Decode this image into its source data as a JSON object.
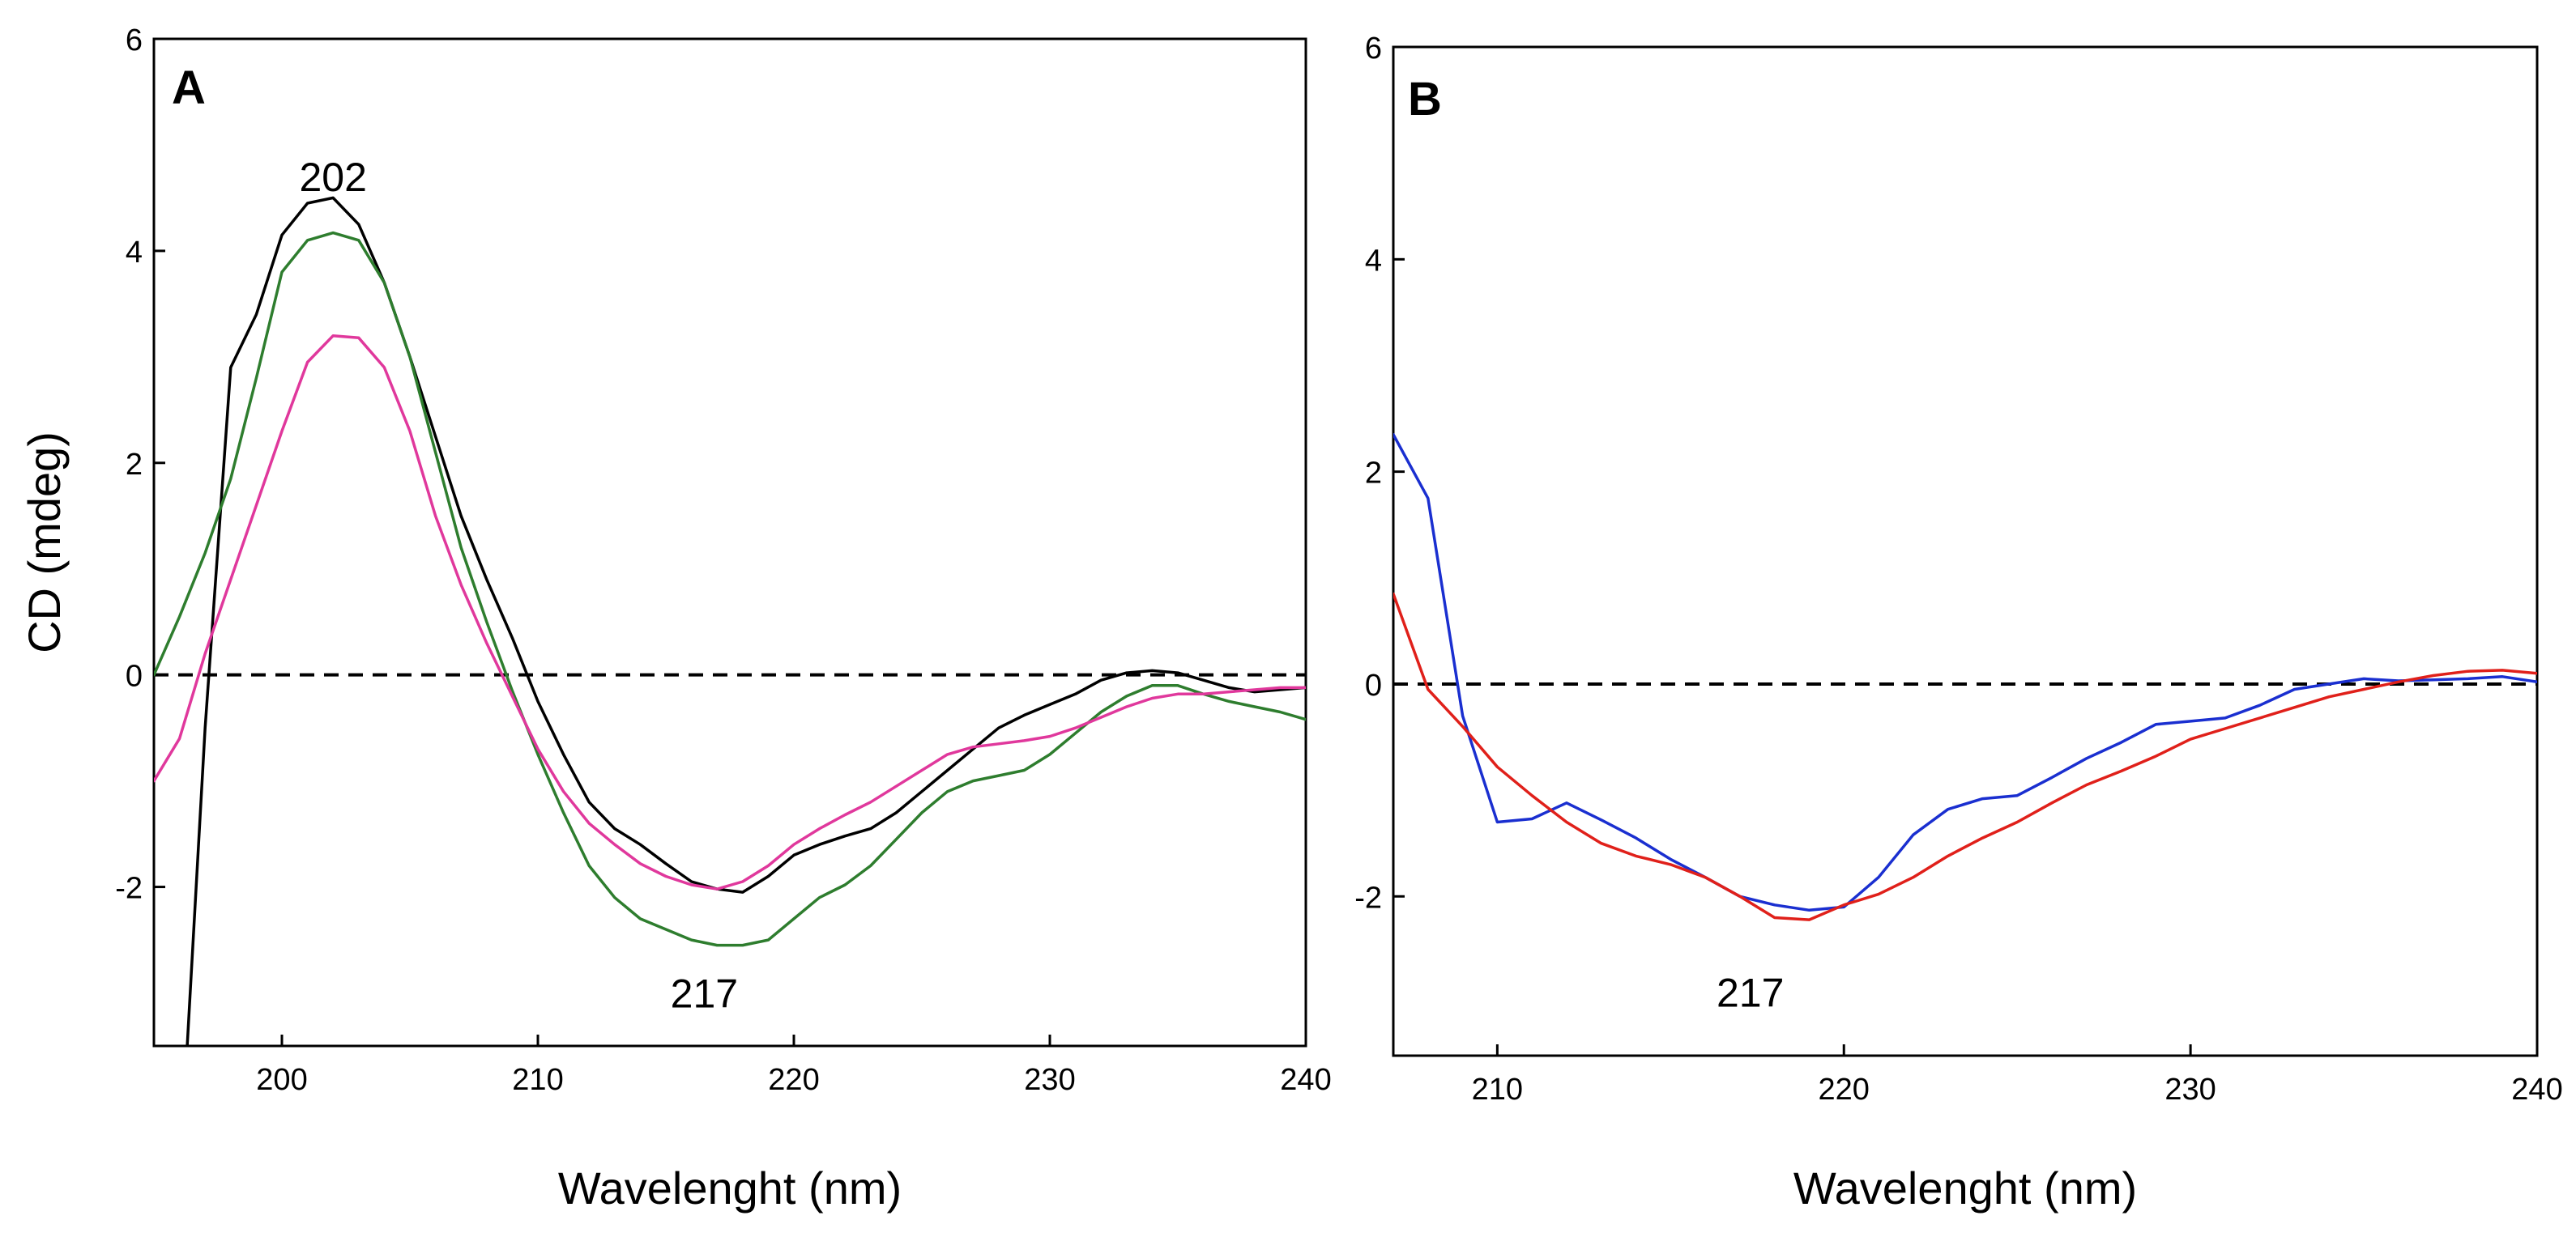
{
  "chart_data": [
    {
      "panel": "A",
      "type": "line",
      "panel_label": "A",
      "xlabel": "Wavelenght (nm)",
      "ylabel": "CD (mdeg)",
      "xlim": [
        195,
        240
      ],
      "ylim": [
        -3.5,
        6
      ],
      "xticks": [
        200,
        210,
        220,
        230,
        240
      ],
      "yticks": [
        -2,
        0,
        2,
        4,
        6
      ],
      "zero_line": true,
      "annotations": [
        {
          "text": "202",
          "x": 202,
          "y": 4.7
        },
        {
          "text": "217",
          "x": 216.5,
          "y": -3.0
        }
      ],
      "series": [
        {
          "name": "black",
          "color": "#000000",
          "x": [
            196.3,
            197,
            198,
            199,
            200,
            201,
            202,
            203,
            204,
            205,
            206,
            207,
            208,
            209,
            210,
            211,
            212,
            213,
            214,
            215,
            216,
            217,
            218,
            219,
            220,
            221,
            222,
            223,
            224,
            225,
            226,
            227,
            228,
            229,
            230,
            231,
            232,
            233,
            234,
            235,
            236,
            237,
            238,
            239,
            240
          ],
          "y": [
            -3.5,
            -0.5,
            2.9,
            3.4,
            4.15,
            4.45,
            4.5,
            4.25,
            3.7,
            3.0,
            2.25,
            1.5,
            0.9,
            0.35,
            -0.25,
            -0.75,
            -1.2,
            -1.45,
            -1.6,
            -1.78,
            -1.95,
            -2.02,
            -2.05,
            -1.9,
            -1.7,
            -1.6,
            -1.52,
            -1.45,
            -1.3,
            -1.1,
            -0.9,
            -0.7,
            -0.5,
            -0.38,
            -0.28,
            -0.18,
            -0.05,
            0.02,
            0.04,
            0.02,
            -0.05,
            -0.12,
            -0.16,
            -0.14,
            -0.12
          ]
        },
        {
          "name": "green",
          "color": "#2e7d2e",
          "x": [
            195,
            196,
            197,
            198,
            199,
            200,
            201,
            202,
            203,
            204,
            205,
            206,
            207,
            208,
            209,
            210,
            211,
            212,
            213,
            214,
            215,
            216,
            217,
            218,
            219,
            220,
            221,
            222,
            223,
            224,
            225,
            226,
            227,
            228,
            229,
            230,
            231,
            232,
            233,
            234,
            235,
            236,
            237,
            238,
            239,
            240
          ],
          "y": [
            0.0,
            0.55,
            1.15,
            1.85,
            2.8,
            3.8,
            4.1,
            4.17,
            4.1,
            3.7,
            3.0,
            2.1,
            1.2,
            0.5,
            -0.15,
            -0.75,
            -1.3,
            -1.8,
            -2.1,
            -2.3,
            -2.4,
            -2.5,
            -2.55,
            -2.55,
            -2.5,
            -2.3,
            -2.1,
            -1.98,
            -1.8,
            -1.55,
            -1.3,
            -1.1,
            -1.0,
            -0.95,
            -0.9,
            -0.75,
            -0.55,
            -0.35,
            -0.2,
            -0.1,
            -0.1,
            -0.18,
            -0.25,
            -0.3,
            -0.35,
            -0.42
          ]
        },
        {
          "name": "magenta",
          "color": "#e0389c",
          "x": [
            195,
            196,
            197,
            198,
            199,
            200,
            201,
            202,
            203,
            204,
            205,
            206,
            207,
            208,
            209,
            210,
            211,
            212,
            213,
            214,
            215,
            216,
            217,
            218,
            219,
            220,
            221,
            222,
            223,
            224,
            225,
            226,
            227,
            228,
            229,
            230,
            231,
            232,
            233,
            234,
            235,
            236,
            237,
            238,
            239,
            240
          ],
          "y": [
            -1.0,
            -0.6,
            0.2,
            0.9,
            1.6,
            2.3,
            2.95,
            3.2,
            3.18,
            2.9,
            2.3,
            1.5,
            0.85,
            0.3,
            -0.2,
            -0.7,
            -1.1,
            -1.4,
            -1.6,
            -1.78,
            -1.9,
            -1.98,
            -2.02,
            -1.95,
            -1.8,
            -1.6,
            -1.45,
            -1.32,
            -1.2,
            -1.05,
            -0.9,
            -0.75,
            -0.68,
            -0.65,
            -0.62,
            -0.58,
            -0.5,
            -0.4,
            -0.3,
            -0.22,
            -0.18,
            -0.18,
            -0.16,
            -0.14,
            -0.12,
            -0.12
          ]
        }
      ]
    },
    {
      "panel": "B",
      "type": "line",
      "panel_label": "B",
      "xlabel": "Wavelenght (nm)",
      "ylabel": "",
      "xlim": [
        207,
        240
      ],
      "ylim": [
        -3.5,
        6
      ],
      "xticks": [
        210,
        220,
        230,
        240
      ],
      "yticks": [
        -2,
        0,
        2,
        4,
        6
      ],
      "zero_line": true,
      "annotations": [
        {
          "text": "217",
          "x": 217.3,
          "y": -2.9
        }
      ],
      "series": [
        {
          "name": "blue",
          "color": "#1a2fd0",
          "x": [
            207,
            208,
            209,
            210,
            211,
            212,
            213,
            214,
            215,
            216,
            217,
            218,
            219,
            220,
            221,
            222,
            223,
            224,
            225,
            226,
            227,
            228,
            229,
            230,
            231,
            232,
            233,
            234,
            235,
            236,
            237,
            238,
            239,
            240
          ],
          "y": [
            2.35,
            1.75,
            -0.3,
            -1.3,
            -1.27,
            -1.12,
            -1.28,
            -1.45,
            -1.65,
            -1.82,
            -2.0,
            -2.08,
            -2.13,
            -2.1,
            -1.82,
            -1.42,
            -1.18,
            -1.08,
            -1.05,
            -0.88,
            -0.7,
            -0.55,
            -0.38,
            -0.35,
            -0.32,
            -0.2,
            -0.05,
            0.0,
            0.05,
            0.03,
            0.04,
            0.05,
            0.07,
            0.02
          ]
        },
        {
          "name": "red",
          "color": "#e0201a",
          "x": [
            207,
            208,
            209,
            210,
            211,
            212,
            213,
            214,
            215,
            216,
            217,
            218,
            219,
            220,
            221,
            222,
            223,
            224,
            225,
            226,
            227,
            228,
            229,
            230,
            231,
            232,
            233,
            234,
            235,
            236,
            237,
            238,
            239,
            240
          ],
          "y": [
            0.85,
            -0.05,
            -0.4,
            -0.78,
            -1.05,
            -1.3,
            -1.5,
            -1.62,
            -1.7,
            -1.82,
            -2.0,
            -2.2,
            -2.22,
            -2.08,
            -1.98,
            -1.82,
            -1.62,
            -1.45,
            -1.3,
            -1.12,
            -0.95,
            -0.82,
            -0.68,
            -0.52,
            -0.42,
            -0.32,
            -0.22,
            -0.12,
            -0.05,
            0.02,
            0.08,
            0.12,
            0.13,
            0.1
          ]
        }
      ]
    }
  ]
}
